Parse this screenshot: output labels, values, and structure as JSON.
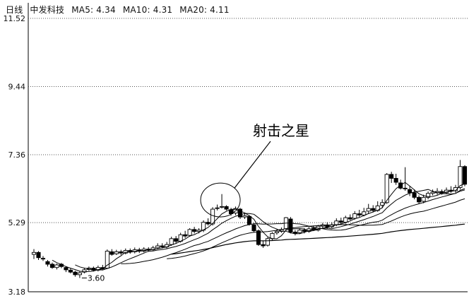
{
  "header": {
    "period": "日线",
    "stock": "中发科技",
    "ma5": "MA5: 4.34",
    "ma10": "MA10: 4.31",
    "ma20": "MA20: 4.11"
  },
  "chart_data": {
    "type": "candlestick",
    "title": "",
    "y_ticks": [
      "11.52",
      "9.44",
      "7.36",
      "5.29",
      "3.18"
    ],
    "y_tick_values": [
      11.52,
      9.44,
      7.36,
      5.29,
      3.18
    ],
    "ylim": [
      3.18,
      11.52
    ],
    "grid": "horizontal-dotted",
    "annotation": "射击之星",
    "low_label": "3.60",
    "candles": [
      [
        4.32,
        4.38,
        4.48,
        4.18
      ],
      [
        4.38,
        4.22,
        4.42,
        4.15
      ],
      [
        4.2,
        4.18,
        4.27,
        4.12
      ],
      [
        4.1,
        4.02,
        4.15,
        3.95
      ],
      [
        4.02,
        3.92,
        4.07,
        3.88
      ],
      [
        3.92,
        4.0,
        4.04,
        3.86
      ],
      [
        4.02,
        3.95,
        4.06,
        3.9
      ],
      [
        3.92,
        3.85,
        3.96,
        3.78
      ],
      [
        3.84,
        3.78,
        3.9,
        3.74
      ],
      [
        3.78,
        3.7,
        3.82,
        3.64
      ],
      [
        3.7,
        3.76,
        3.8,
        3.6
      ],
      [
        3.78,
        3.85,
        3.9,
        3.74
      ],
      [
        3.86,
        3.9,
        3.95,
        3.82
      ],
      [
        3.9,
        3.84,
        3.95,
        3.8
      ],
      [
        3.84,
        3.92,
        3.98,
        3.8
      ],
      [
        3.92,
        3.88,
        4.0,
        3.85
      ],
      [
        3.9,
        4.42,
        4.47,
        3.88
      ],
      [
        4.4,
        4.32,
        4.48,
        4.28
      ],
      [
        4.34,
        4.4,
        4.46,
        4.3
      ],
      [
        4.4,
        4.36,
        4.46,
        4.3
      ],
      [
        4.36,
        4.44,
        4.5,
        4.32
      ],
      [
        4.44,
        4.4,
        4.5,
        4.34
      ],
      [
        4.4,
        4.46,
        4.53,
        4.35
      ],
      [
        4.46,
        4.42,
        4.52,
        4.36
      ],
      [
        4.42,
        4.48,
        4.54,
        4.38
      ],
      [
        4.48,
        4.46,
        4.54,
        4.4
      ],
      [
        4.46,
        4.52,
        4.58,
        4.42
      ],
      [
        4.52,
        4.58,
        4.66,
        4.48
      ],
      [
        4.58,
        4.55,
        4.66,
        4.5
      ],
      [
        4.55,
        4.62,
        4.7,
        4.5
      ],
      [
        4.62,
        4.8,
        4.86,
        4.58
      ],
      [
        4.8,
        4.72,
        4.88,
        4.66
      ],
      [
        4.72,
        4.92,
        4.98,
        4.68
      ],
      [
        4.92,
        4.88,
        5.04,
        4.82
      ],
      [
        4.9,
        5.08,
        5.12,
        4.86
      ],
      [
        5.08,
        5.02,
        5.16,
        4.96
      ],
      [
        5.02,
        5.06,
        5.12,
        4.96
      ],
      [
        5.06,
        5.3,
        5.36,
        5.0
      ],
      [
        5.3,
        5.25,
        5.42,
        5.2
      ],
      [
        5.25,
        5.7,
        5.76,
        5.2
      ],
      [
        5.72,
        5.74,
        5.84,
        5.66
      ],
      [
        5.76,
        5.78,
        6.16,
        5.72
      ],
      [
        5.78,
        5.7,
        5.82,
        5.66
      ],
      [
        5.68,
        5.56,
        5.74,
        5.5
      ],
      [
        5.58,
        5.72,
        5.78,
        5.52
      ],
      [
        5.7,
        5.46,
        5.74,
        5.4
      ],
      [
        5.46,
        5.5,
        5.58,
        5.4
      ],
      [
        5.48,
        5.24,
        5.52,
        5.2
      ],
      [
        5.22,
        5.04,
        5.28,
        5.0
      ],
      [
        5.04,
        4.62,
        5.08,
        4.58
      ],
      [
        4.62,
        4.58,
        4.72,
        4.52
      ],
      [
        4.6,
        4.8,
        4.84,
        4.56
      ],
      [
        4.8,
        4.96,
        5.0,
        4.74
      ],
      [
        4.98,
        5.02,
        5.08,
        4.92
      ],
      [
        5.02,
        5.08,
        5.14,
        4.98
      ],
      [
        5.1,
        5.44,
        5.46,
        5.06
      ],
      [
        5.4,
        5.0,
        5.46,
        4.96
      ],
      [
        5.0,
        4.96,
        5.06,
        4.9
      ],
      [
        4.98,
        5.06,
        5.1,
        4.94
      ],
      [
        5.06,
        5.02,
        5.12,
        4.96
      ],
      [
        5.02,
        5.1,
        5.16,
        4.98
      ],
      [
        5.12,
        5.08,
        5.2,
        5.04
      ],
      [
        5.06,
        5.18,
        5.22,
        5.02
      ],
      [
        5.18,
        5.22,
        5.28,
        5.12
      ],
      [
        5.22,
        5.16,
        5.3,
        5.1
      ],
      [
        5.16,
        5.22,
        5.3,
        5.12
      ],
      [
        5.22,
        5.34,
        5.42,
        5.18
      ],
      [
        5.34,
        5.3,
        5.44,
        5.24
      ],
      [
        5.3,
        5.44,
        5.5,
        5.26
      ],
      [
        5.44,
        5.4,
        5.54,
        5.36
      ],
      [
        5.42,
        5.56,
        5.64,
        5.38
      ],
      [
        5.56,
        5.52,
        5.68,
        5.46
      ],
      [
        5.52,
        5.62,
        5.74,
        5.48
      ],
      [
        5.64,
        5.72,
        5.86,
        5.56
      ],
      [
        5.72,
        5.66,
        5.82,
        5.6
      ],
      [
        5.66,
        5.8,
        5.94,
        5.62
      ],
      [
        5.82,
        5.9,
        6.0,
        5.74
      ],
      [
        5.9,
        6.76,
        6.8,
        5.86
      ],
      [
        6.76,
        6.64,
        6.84,
        6.5
      ],
      [
        6.64,
        6.52,
        6.78,
        6.44
      ],
      [
        6.5,
        6.34,
        6.6,
        6.3
      ],
      [
        6.34,
        6.32,
        6.98,
        6.26
      ],
      [
        6.3,
        6.2,
        6.4,
        6.1
      ],
      [
        6.2,
        6.06,
        6.3,
        6.0
      ],
      [
        6.06,
        5.92,
        6.12,
        5.86
      ],
      [
        5.94,
        6.06,
        6.14,
        5.88
      ],
      [
        6.06,
        6.18,
        6.24,
        6.0
      ],
      [
        6.18,
        6.22,
        6.3,
        6.12
      ],
      [
        6.2,
        6.24,
        6.34,
        6.14
      ],
      [
        6.24,
        6.2,
        6.3,
        6.14
      ],
      [
        6.2,
        6.28,
        6.36,
        6.16
      ],
      [
        6.28,
        6.26,
        6.4,
        6.2
      ],
      [
        6.26,
        6.36,
        6.44,
        6.2
      ],
      [
        6.36,
        7.0,
        7.2,
        6.3
      ],
      [
        7.0,
        6.46,
        7.04,
        6.4
      ]
    ]
  }
}
